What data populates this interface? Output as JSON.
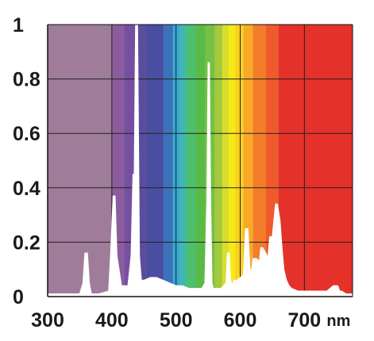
{
  "chart_data": {
    "type": "area",
    "title": "",
    "xlabel": "",
    "ylabel": "",
    "x_unit": "nm",
    "xlim": [
      300,
      775
    ],
    "ylim": [
      0,
      1
    ],
    "grid": true,
    "legend": "none",
    "x_ticks": [
      300,
      400,
      500,
      600,
      700
    ],
    "x_tick_labels": [
      "300",
      "400",
      "500",
      "600",
      "700"
    ],
    "y_ticks": [
      0,
      0.2,
      0.4,
      0.6,
      0.8,
      1
    ],
    "y_tick_labels": [
      "0",
      "0.2",
      "0.4",
      "0.6",
      "0.8",
      "1"
    ],
    "background": "visible color spectrum from violet to red",
    "spectrum_bands": [
      {
        "from": 300,
        "to": 400,
        "color": "#9f7c99"
      },
      {
        "from": 400,
        "to": 420,
        "color": "#8b5c9e"
      },
      {
        "from": 420,
        "to": 440,
        "color": "#754fa0"
      },
      {
        "from": 440,
        "to": 455,
        "color": "#5b4d9e"
      },
      {
        "from": 455,
        "to": 480,
        "color": "#4a4ea0"
      },
      {
        "from": 480,
        "to": 495,
        "color": "#3c72b8"
      },
      {
        "from": 495,
        "to": 505,
        "color": "#36a7d6"
      },
      {
        "from": 505,
        "to": 515,
        "color": "#3fb6b5"
      },
      {
        "from": 515,
        "to": 530,
        "color": "#4cbf73"
      },
      {
        "from": 530,
        "to": 545,
        "color": "#58bb48"
      },
      {
        "from": 545,
        "to": 560,
        "color": "#75c045"
      },
      {
        "from": 560,
        "to": 572,
        "color": "#a3ca3c"
      },
      {
        "from": 572,
        "to": 582,
        "color": "#d8dd2e"
      },
      {
        "from": 582,
        "to": 592,
        "color": "#f5ea14"
      },
      {
        "from": 592,
        "to": 605,
        "color": "#fbd11f"
      },
      {
        "from": 605,
        "to": 620,
        "color": "#f9a928"
      },
      {
        "from": 620,
        "to": 640,
        "color": "#f47d2a"
      },
      {
        "from": 640,
        "to": 660,
        "color": "#ef5a2b"
      },
      {
        "from": 660,
        "to": 775,
        "color": "#e4312a"
      }
    ],
    "series": [
      {
        "fill": "#ffffff",
        "x": [
          300,
          350,
          355,
          358,
          362,
          365,
          368,
          372,
          380,
          395,
          398,
          402,
          405,
          408,
          415,
          425,
          430,
          433,
          435,
          437,
          440,
          443,
          446,
          450,
          460,
          470,
          480,
          490,
          500,
          510,
          520,
          530,
          540,
          545,
          548,
          550,
          552,
          554,
          556,
          558,
          562,
          570,
          578,
          580,
          583,
          585,
          588,
          590,
          595,
          600,
          605,
          608,
          612,
          615,
          618,
          620,
          625,
          630,
          632,
          635,
          640,
          643,
          646,
          650,
          655,
          658,
          662,
          665,
          668,
          672,
          676,
          680,
          690,
          700,
          720,
          735,
          745,
          752,
          755,
          758,
          765,
          775
        ],
        "y": [
          0.01,
          0.01,
          0.05,
          0.16,
          0.16,
          0.05,
          0.01,
          0.01,
          0.01,
          0.02,
          0.15,
          0.37,
          0.37,
          0.15,
          0.04,
          0.04,
          0.15,
          0.45,
          0.45,
          1.0,
          1.0,
          0.15,
          0.06,
          0.06,
          0.07,
          0.07,
          0.06,
          0.05,
          0.04,
          0.04,
          0.03,
          0.03,
          0.03,
          0.05,
          0.35,
          0.86,
          0.86,
          0.35,
          0.05,
          0.03,
          0.03,
          0.03,
          0.05,
          0.16,
          0.16,
          0.06,
          0.04,
          0.06,
          0.06,
          0.07,
          0.08,
          0.25,
          0.25,
          0.1,
          0.1,
          0.14,
          0.14,
          0.13,
          0.18,
          0.18,
          0.16,
          0.14,
          0.22,
          0.22,
          0.34,
          0.34,
          0.28,
          0.18,
          0.1,
          0.06,
          0.04,
          0.03,
          0.02,
          0.02,
          0.02,
          0.02,
          0.04,
          0.04,
          0.02,
          0.02,
          0.01,
          0.01
        ]
      }
    ]
  }
}
